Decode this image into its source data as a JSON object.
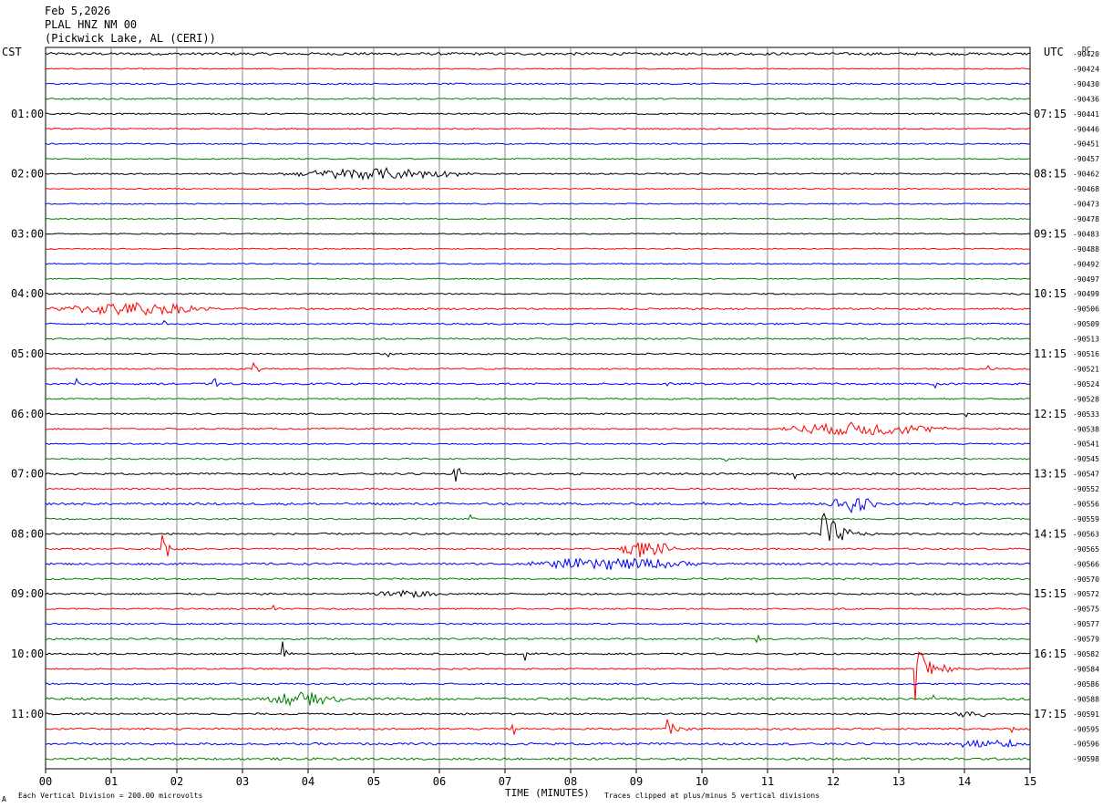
{
  "header": {
    "date": "Feb 5,2026",
    "station": "PLAL HNZ NM 00",
    "location": "(Pickwick Lake, AL (CERI))"
  },
  "left_axis_label": "CST",
  "right_axis_label": "UTC",
  "dc_label": "DC",
  "footer": {
    "scale_note": "Each Vertical Division =  200.00 microvolts",
    "clip_note": "Traces clipped at plus/minus 5 vertical divisions",
    "corner_mark": "A"
  },
  "colors": {
    "cycle": [
      "#000000",
      "#ff0000",
      "#0000ff",
      "#007f00"
    ],
    "grid": "#888888"
  },
  "chart_data": {
    "type": "line",
    "xlabel": "TIME (MINUTES)",
    "xlim": [
      0,
      15
    ],
    "x_ticks": [
      "00",
      "01",
      "02",
      "03",
      "04",
      "05",
      "06",
      "07",
      "08",
      "09",
      "10",
      "11",
      "12",
      "13",
      "14",
      "15"
    ],
    "trace_count": 48,
    "trace_minutes": 15,
    "left_hour_labels": [
      {
        "row": 4,
        "label": "01:00"
      },
      {
        "row": 8,
        "label": "02:00"
      },
      {
        "row": 12,
        "label": "03:00"
      },
      {
        "row": 16,
        "label": "04:00"
      },
      {
        "row": 20,
        "label": "05:00"
      },
      {
        "row": 24,
        "label": "06:00"
      },
      {
        "row": 28,
        "label": "07:00"
      },
      {
        "row": 32,
        "label": "08:00"
      },
      {
        "row": 36,
        "label": "09:00"
      },
      {
        "row": 40,
        "label": "10:00"
      },
      {
        "row": 44,
        "label": "11:00"
      }
    ],
    "right_hour_labels": [
      {
        "row": 4,
        "label": "07:15"
      },
      {
        "row": 8,
        "label": "08:15"
      },
      {
        "row": 12,
        "label": "09:15"
      },
      {
        "row": 16,
        "label": "10:15"
      },
      {
        "row": 20,
        "label": "11:15"
      },
      {
        "row": 24,
        "label": "12:15"
      },
      {
        "row": 28,
        "label": "13:15"
      },
      {
        "row": 32,
        "label": "14:15"
      },
      {
        "row": 36,
        "label": "15:15"
      },
      {
        "row": 40,
        "label": "16:15"
      },
      {
        "row": 44,
        "label": "17:15"
      }
    ],
    "dc_offsets": [
      "-90420",
      "-90424",
      "-90430",
      "-90436",
      "-90441",
      "-90446",
      "-90451",
      "-90457",
      "-90462",
      "-90468",
      "-90473",
      "-90478",
      "-90483",
      "-90488",
      "-90492",
      "-90497",
      "-90499",
      "-90506",
      "-90509",
      "-90513",
      "-90516",
      "-90521",
      "-90524",
      "-90528",
      "-90533",
      "-90538",
      "-90541",
      "-90545",
      "-90547",
      "-90552",
      "-90556",
      "-90559",
      "-90563",
      "-90565",
      "-90566",
      "-90570",
      "-90572",
      "-90575",
      "-90577",
      "-90579",
      "-90582",
      "-90584",
      "-90586",
      "-90588",
      "-90591",
      "-90595",
      "-90596",
      "-90598"
    ],
    "noise_levels": [
      1.4,
      0.6,
      0.8,
      0.8,
      0.8,
      0.7,
      0.7,
      0.6,
      0.8,
      0.6,
      0.6,
      0.6,
      0.6,
      0.6,
      0.6,
      0.6,
      0.7,
      1.0,
      0.9,
      0.9,
      0.8,
      0.8,
      1.0,
      0.8,
      0.8,
      0.8,
      0.8,
      0.8,
      1.0,
      0.8,
      1.2,
      0.9,
      1.0,
      0.9,
      1.1,
      0.9,
      1.0,
      0.8,
      0.8,
      1.0,
      0.9,
      0.8,
      0.9,
      1.3,
      1.0,
      1.0,
      1.2,
      1.2
    ],
    "events": [
      {
        "row": 8,
        "start": 3.55,
        "end": 6.5,
        "amplitude": 6,
        "kind": "burst"
      },
      {
        "row": 16,
        "start": 14.75,
        "end": 14.95,
        "amplitude": 8,
        "kind": "spike"
      },
      {
        "row": 17,
        "start": 0.0,
        "end": 2.6,
        "amplitude": 7,
        "kind": "burst"
      },
      {
        "row": 18,
        "start": 1.8,
        "end": 1.9,
        "amplitude": 8,
        "kind": "spike"
      },
      {
        "row": 20,
        "start": 5.2,
        "end": 5.35,
        "amplitude": 9,
        "kind": "spike"
      },
      {
        "row": 21,
        "start": 3.15,
        "end": 3.4,
        "amplitude": 12,
        "kind": "spike"
      },
      {
        "row": 21,
        "start": 14.35,
        "end": 14.6,
        "amplitude": 7,
        "kind": "spike"
      },
      {
        "row": 22,
        "start": 0.45,
        "end": 0.55,
        "amplitude": 14,
        "kind": "spike"
      },
      {
        "row": 22,
        "start": 2.55,
        "end": 2.75,
        "amplitude": 10,
        "kind": "spike"
      },
      {
        "row": 22,
        "start": 9.45,
        "end": 9.55,
        "amplitude": 10,
        "kind": "spike"
      },
      {
        "row": 22,
        "start": 13.55,
        "end": 13.7,
        "amplitude": 8,
        "kind": "spike"
      },
      {
        "row": 24,
        "start": 14.0,
        "end": 14.15,
        "amplitude": 7,
        "kind": "spike"
      },
      {
        "row": 25,
        "start": 11.0,
        "end": 13.8,
        "amplitude": 7,
        "kind": "burst"
      },
      {
        "row": 27,
        "start": 10.35,
        "end": 10.5,
        "amplitude": 6,
        "kind": "spike"
      },
      {
        "row": 28,
        "start": 6.2,
        "end": 6.6,
        "amplitude": 16,
        "kind": "spike"
      },
      {
        "row": 28,
        "start": 8.0,
        "end": 8.25,
        "amplitude": 5,
        "kind": "spike"
      },
      {
        "row": 28,
        "start": 11.4,
        "end": 11.6,
        "amplitude": 8,
        "kind": "spike"
      },
      {
        "row": 30,
        "start": 11.9,
        "end": 12.7,
        "amplitude": 9,
        "kind": "burst"
      },
      {
        "row": 30,
        "start": 10.0,
        "end": 10.1,
        "amplitude": 10,
        "kind": "spike"
      },
      {
        "row": 31,
        "start": 6.45,
        "end": 6.6,
        "amplitude": 7,
        "kind": "spike"
      },
      {
        "row": 32,
        "start": 11.8,
        "end": 12.7,
        "amplitude": 34,
        "kind": "spike"
      },
      {
        "row": 33,
        "start": 1.75,
        "end": 2.1,
        "amplitude": 40,
        "kind": "spike"
      },
      {
        "row": 33,
        "start": 8.7,
        "end": 9.6,
        "amplitude": 9,
        "kind": "burst"
      },
      {
        "row": 34,
        "start": 7.1,
        "end": 10.2,
        "amplitude": 6,
        "kind": "burst"
      },
      {
        "row": 35,
        "start": 12.15,
        "end": 12.3,
        "amplitude": 7,
        "kind": "spike"
      },
      {
        "row": 36,
        "start": 4.8,
        "end": 6.2,
        "amplitude": 4,
        "kind": "burst"
      },
      {
        "row": 37,
        "start": 3.45,
        "end": 3.6,
        "amplitude": 7,
        "kind": "spike"
      },
      {
        "row": 39,
        "start": 10.8,
        "end": 10.95,
        "amplitude": 30,
        "kind": "spike"
      },
      {
        "row": 40,
        "start": 3.6,
        "end": 3.8,
        "amplitude": 18,
        "kind": "spike"
      },
      {
        "row": 40,
        "start": 7.3,
        "end": 7.5,
        "amplitude": 20,
        "kind": "spike"
      },
      {
        "row": 41,
        "start": 13.2,
        "end": 14.0,
        "amplitude": 45,
        "kind": "spike"
      },
      {
        "row": 43,
        "start": 3.3,
        "end": 4.6,
        "amplitude": 8,
        "kind": "burst"
      },
      {
        "row": 43,
        "start": 13.5,
        "end": 13.7,
        "amplitude": 8,
        "kind": "spike"
      },
      {
        "row": 44,
        "start": 13.8,
        "end": 14.4,
        "amplitude": 5,
        "kind": "burst"
      },
      {
        "row": 45,
        "start": 7.1,
        "end": 7.4,
        "amplitude": 14,
        "kind": "spike"
      },
      {
        "row": 45,
        "start": 9.45,
        "end": 9.9,
        "amplitude": 16,
        "kind": "spike"
      },
      {
        "row": 45,
        "start": 14.7,
        "end": 14.9,
        "amplitude": 7,
        "kind": "spike"
      },
      {
        "row": 46,
        "start": 13.8,
        "end": 15.0,
        "amplitude": 5,
        "kind": "burst"
      }
    ]
  }
}
